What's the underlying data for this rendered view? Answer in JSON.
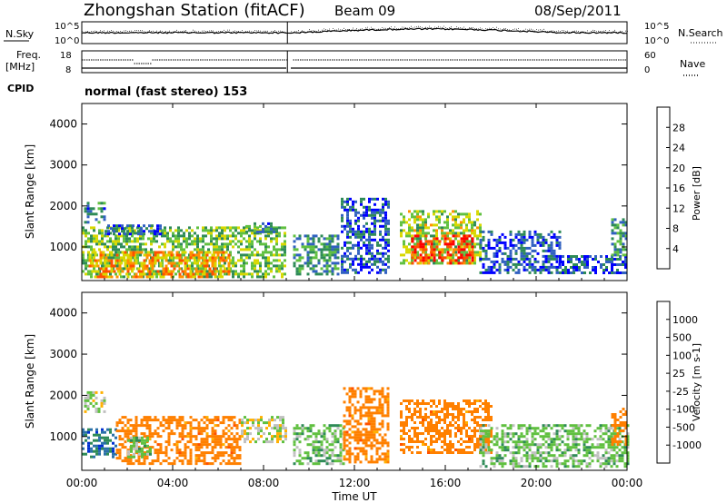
{
  "header": {
    "title": "Zhongshan Station (fitACF)",
    "beam": "Beam 09",
    "date": "08/Sep/2011"
  },
  "noise_panel": {
    "left_label": "N.Sky",
    "left_ticks": [
      "10^5",
      "10^0"
    ],
    "right_label": "N.Search",
    "right_ticks": [
      "10^5",
      "10^0"
    ]
  },
  "freq_panel": {
    "left_label_top": "Freq.",
    "left_label_bottom": "[MHz]",
    "left_ticks": [
      "18",
      "8"
    ],
    "right_label": "Nave",
    "right_ticks": [
      "60",
      "0"
    ]
  },
  "cpid": {
    "label": "CPID",
    "value": "normal (fast stereo) 153"
  },
  "x_axis": {
    "ticks": [
      "00:00",
      "04:00",
      "08:00",
      "12:00",
      "16:00",
      "20:00",
      "00:00"
    ],
    "label": "Time UT"
  },
  "chart_data": [
    {
      "type": "heatmap",
      "name": "power",
      "ylabel": "Slant Range [km]",
      "ylim": [
        180,
        4500
      ],
      "y_ticks": [
        "1000",
        "2000",
        "3000",
        "4000"
      ],
      "xlim_hours": [
        0,
        24
      ],
      "colorbar": {
        "label": "Power [dB]",
        "ticks": [
          "4",
          "8",
          "12",
          "16",
          "20",
          "24",
          "28"
        ],
        "colors": [
          "#0000ff",
          "#3060c0",
          "#2e8b57",
          "#60c040",
          "#d8d800",
          "#ff9000",
          "#ff5000",
          "#ff0000"
        ]
      },
      "regions": [
        {
          "t0": 0.0,
          "t1": 9.0,
          "r0": 250,
          "r1": 1500,
          "value": 14
        },
        {
          "t0": 0.1,
          "t1": 1.0,
          "r0": 1600,
          "r1": 2100,
          "value": 8
        },
        {
          "t0": 1.0,
          "t1": 3.5,
          "r0": 1350,
          "r1": 1550,
          "value": 6
        },
        {
          "t0": 7.2,
          "t1": 8.6,
          "r0": 1350,
          "r1": 1600,
          "value": 8
        },
        {
          "t0": 0.3,
          "t1": 6.5,
          "r0": 300,
          "r1": 900,
          "value": 22
        },
        {
          "t0": 9.3,
          "t1": 11.3,
          "r0": 350,
          "r1": 1300,
          "value": 10
        },
        {
          "t0": 11.4,
          "t1": 13.5,
          "r0": 400,
          "r1": 2200,
          "value": 6
        },
        {
          "t0": 14.0,
          "t1": 17.5,
          "r0": 600,
          "r1": 1900,
          "value": 16
        },
        {
          "t0": 14.5,
          "t1": 17.2,
          "r0": 600,
          "r1": 1300,
          "value": 27
        },
        {
          "t0": 17.5,
          "t1": 21.0,
          "r0": 350,
          "r1": 1400,
          "value": 6
        },
        {
          "t0": 21.0,
          "t1": 24.0,
          "r0": 400,
          "r1": 800,
          "value": 6
        },
        {
          "t0": 23.3,
          "t1": 24.0,
          "r0": 800,
          "r1": 1700,
          "value": 10
        }
      ]
    },
    {
      "type": "heatmap",
      "name": "velocity",
      "ylabel": "Slant Range [km]",
      "ylim": [
        180,
        4500
      ],
      "y_ticks": [
        "1000",
        "2000",
        "3000",
        "4000"
      ],
      "xlim_hours": [
        0,
        24
      ],
      "colorbar": {
        "label": "Velocity [m s-1]",
        "ticks": [
          "1000",
          "500",
          "100",
          "25",
          "-25",
          "-100",
          "-500",
          "-1000"
        ],
        "colors": [
          "#0030d0",
          "#2a70a8",
          "#2e8b57",
          "#60c040",
          "#c0c0c0",
          "#ffb000",
          "#ff8000",
          "#ff5000",
          "#ff0000"
        ]
      },
      "regions": [
        {
          "t0": 0.0,
          "t1": 1.5,
          "r0": 500,
          "r1": 1200,
          "value": 700
        },
        {
          "t0": 0.1,
          "t1": 1.0,
          "r0": 1600,
          "r1": 2100,
          "value": 0
        },
        {
          "t0": 1.5,
          "t1": 7.0,
          "r0": 350,
          "r1": 1500,
          "value": -300
        },
        {
          "t0": 2.0,
          "t1": 3.0,
          "r0": 500,
          "r1": 1000,
          "value": 60
        },
        {
          "t0": 7.0,
          "t1": 9.0,
          "r0": 900,
          "r1": 1500,
          "value": 0
        },
        {
          "t0": 9.3,
          "t1": 11.5,
          "r0": 350,
          "r1": 1300,
          "value": 60
        },
        {
          "t0": 11.5,
          "t1": 13.5,
          "r0": 400,
          "r1": 2200,
          "value": -300
        },
        {
          "t0": 14.0,
          "t1": 18.0,
          "r0": 600,
          "r1": 1900,
          "value": -300
        },
        {
          "t0": 17.5,
          "t1": 24.0,
          "r0": 300,
          "r1": 1300,
          "value": 60
        },
        {
          "t0": 23.3,
          "t1": 24.0,
          "r0": 800,
          "r1": 1700,
          "value": -300
        }
      ]
    }
  ]
}
